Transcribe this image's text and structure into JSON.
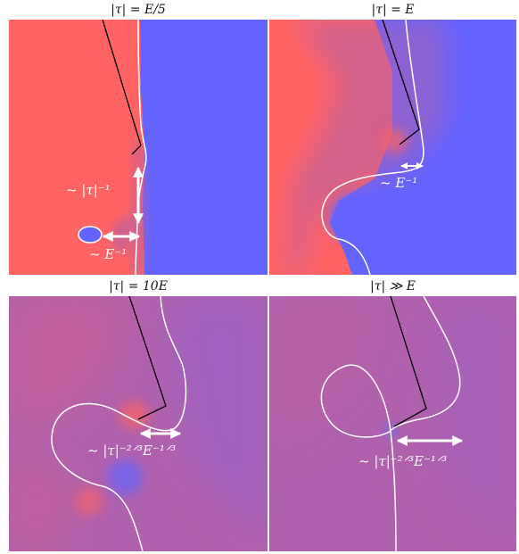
{
  "panels": [
    {
      "title": "|τ| = E/5",
      "annotations": {
        "vertical": "~ |τ|⁻¹",
        "horizontal": "~ E⁻¹"
      }
    },
    {
      "title": "|τ| = E",
      "annotations": {
        "horizontal": "~ E⁻¹"
      }
    },
    {
      "title": "|τ| = 10E",
      "annotations": {
        "horizontal": "~ |τ|⁻²ᐟ³E⁻¹ᐟ³"
      }
    },
    {
      "title": "|τ| ≫ E",
      "annotations": {
        "horizontal": "~ |τ|⁻²ᐟ³E⁻¹ᐟ³"
      }
    }
  ],
  "colors": {
    "red": "#ff6363",
    "blue": "#6363ff",
    "mix": "#b061ad",
    "curve": "#ffffff",
    "wedge": "#000000"
  }
}
